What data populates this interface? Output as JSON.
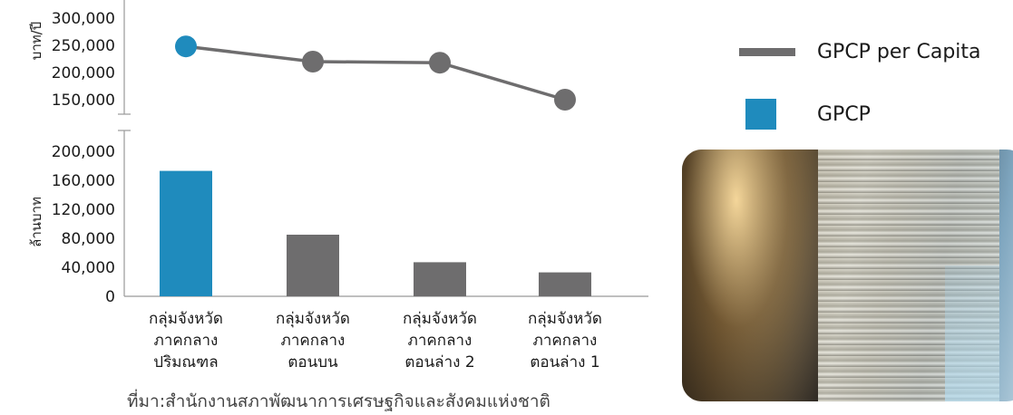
{
  "chart_data": {
    "type": "bar+line",
    "categories": [
      [
        "กลุ่มจังหวัด",
        "ภาคกลาง",
        "ปริมณฑล"
      ],
      [
        "กลุ่มจังหวัด",
        "ภาคกลาง",
        "ตอนบน"
      ],
      [
        "กลุ่มจังหวัด",
        "ภาคกลาง",
        "ตอนล่าง 2"
      ],
      [
        "กลุ่มจังหวัด",
        "ภาคกลาง",
        "ตอนล่าง 1"
      ]
    ],
    "line": {
      "name": "GPCP per Capita",
      "ylabel": "บาท/ปี",
      "yticks": [
        "300,000",
        "250,000",
        "200,000",
        "150,000"
      ],
      "ylim": [
        125000,
        300000
      ],
      "values": [
        248000,
        220000,
        218000,
        150000
      ],
      "color": "#6e6d6e",
      "highlight_color": "#1f8bbd"
    },
    "bars": {
      "name": "GPCP",
      "ylabel": "ล้านบาท",
      "yticks": [
        "200,000",
        "160,000",
        "120,000",
        "80,000",
        "40,000",
        "0"
      ],
      "ylim": [
        0,
        200000
      ],
      "values": [
        173000,
        85000,
        47000,
        33000
      ],
      "colors": [
        "#1f8bbd",
        "#6e6d6e",
        "#6e6d6e",
        "#6e6d6e"
      ]
    },
    "legend": [
      {
        "label": "GPCP per Capita",
        "kind": "line",
        "color": "#6e6d6e"
      },
      {
        "label": "GPCP",
        "kind": "box",
        "color": "#1f8bbd"
      }
    ],
    "legend_position": "right"
  },
  "source": "ที่มา:สำนักงานสภาพัฒนาการเศรษฐกิจและสังคมแห่งชาติ"
}
